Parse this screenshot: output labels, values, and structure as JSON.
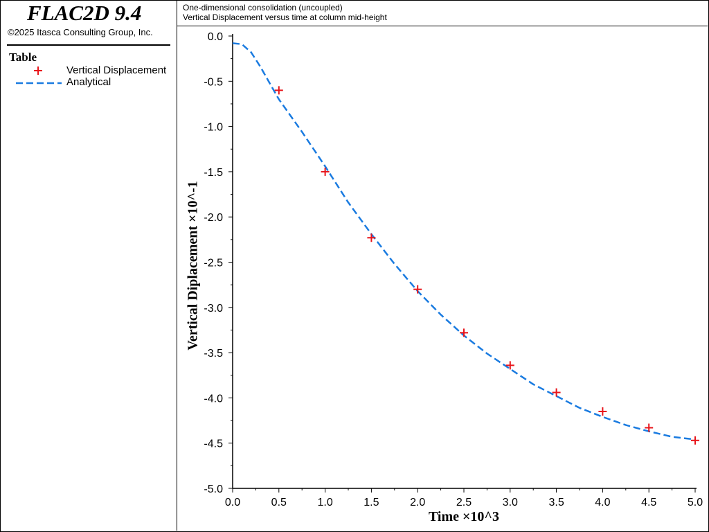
{
  "app": {
    "title": "FLAC2D 9.4",
    "copyright": "©2025 Itasca Consulting Group, Inc."
  },
  "legend": {
    "title": "Table",
    "items": [
      {
        "label": "Vertical Displacement",
        "symbol": "plus",
        "color": "#e8141a"
      },
      {
        "label": "Analytical",
        "symbol": "dashed-line",
        "color": "#1a7be0"
      }
    ]
  },
  "header": {
    "line1": "One-dimensional consolidation (uncoupled)",
    "line2": "Vertical Displacement versus time at column mid-height"
  },
  "chart_data": {
    "type": "line",
    "title": "",
    "xlabel": "Time ×10^3",
    "ylabel": "Vertical Diplacement ×10^-1",
    "xlim": [
      0.0,
      5.0
    ],
    "ylim": [
      -5.0,
      0.0
    ],
    "xticks": [
      "0.0",
      "0.5",
      "1.0",
      "1.5",
      "2.0",
      "2.5",
      "3.0",
      "3.5",
      "4.0",
      "4.5",
      "5.0"
    ],
    "yticks": [
      "0.0",
      "-0.5",
      "-1.0",
      "-1.5",
      "-2.0",
      "-2.5",
      "-3.0",
      "-3.5",
      "-4.0",
      "-4.5",
      "-5.0"
    ],
    "grid": false,
    "series": [
      {
        "name": "Vertical Displacement",
        "style": "markers-plus",
        "color": "#e8141a",
        "x": [
          0.5,
          1.0,
          1.5,
          2.0,
          2.5,
          3.0,
          3.5,
          4.0,
          4.5,
          5.0
        ],
        "y": [
          -0.6,
          -1.5,
          -2.23,
          -2.8,
          -3.28,
          -3.64,
          -3.94,
          -4.15,
          -4.33,
          -4.47
        ]
      },
      {
        "name": "Analytical",
        "style": "dashed-line",
        "color": "#1a7be0",
        "x": [
          0.0,
          0.1,
          0.2,
          0.3,
          0.4,
          0.5,
          0.75,
          1.0,
          1.25,
          1.5,
          1.75,
          2.0,
          2.25,
          2.5,
          2.75,
          3.0,
          3.25,
          3.5,
          3.75,
          4.0,
          4.25,
          4.5,
          4.75,
          5.0
        ],
        "y": [
          -0.08,
          -0.09,
          -0.18,
          -0.34,
          -0.52,
          -0.7,
          -1.06,
          -1.44,
          -1.84,
          -2.19,
          -2.52,
          -2.82,
          -3.08,
          -3.31,
          -3.51,
          -3.68,
          -3.85,
          -3.98,
          -4.11,
          -4.21,
          -4.3,
          -4.37,
          -4.43,
          -4.46
        ]
      }
    ]
  }
}
